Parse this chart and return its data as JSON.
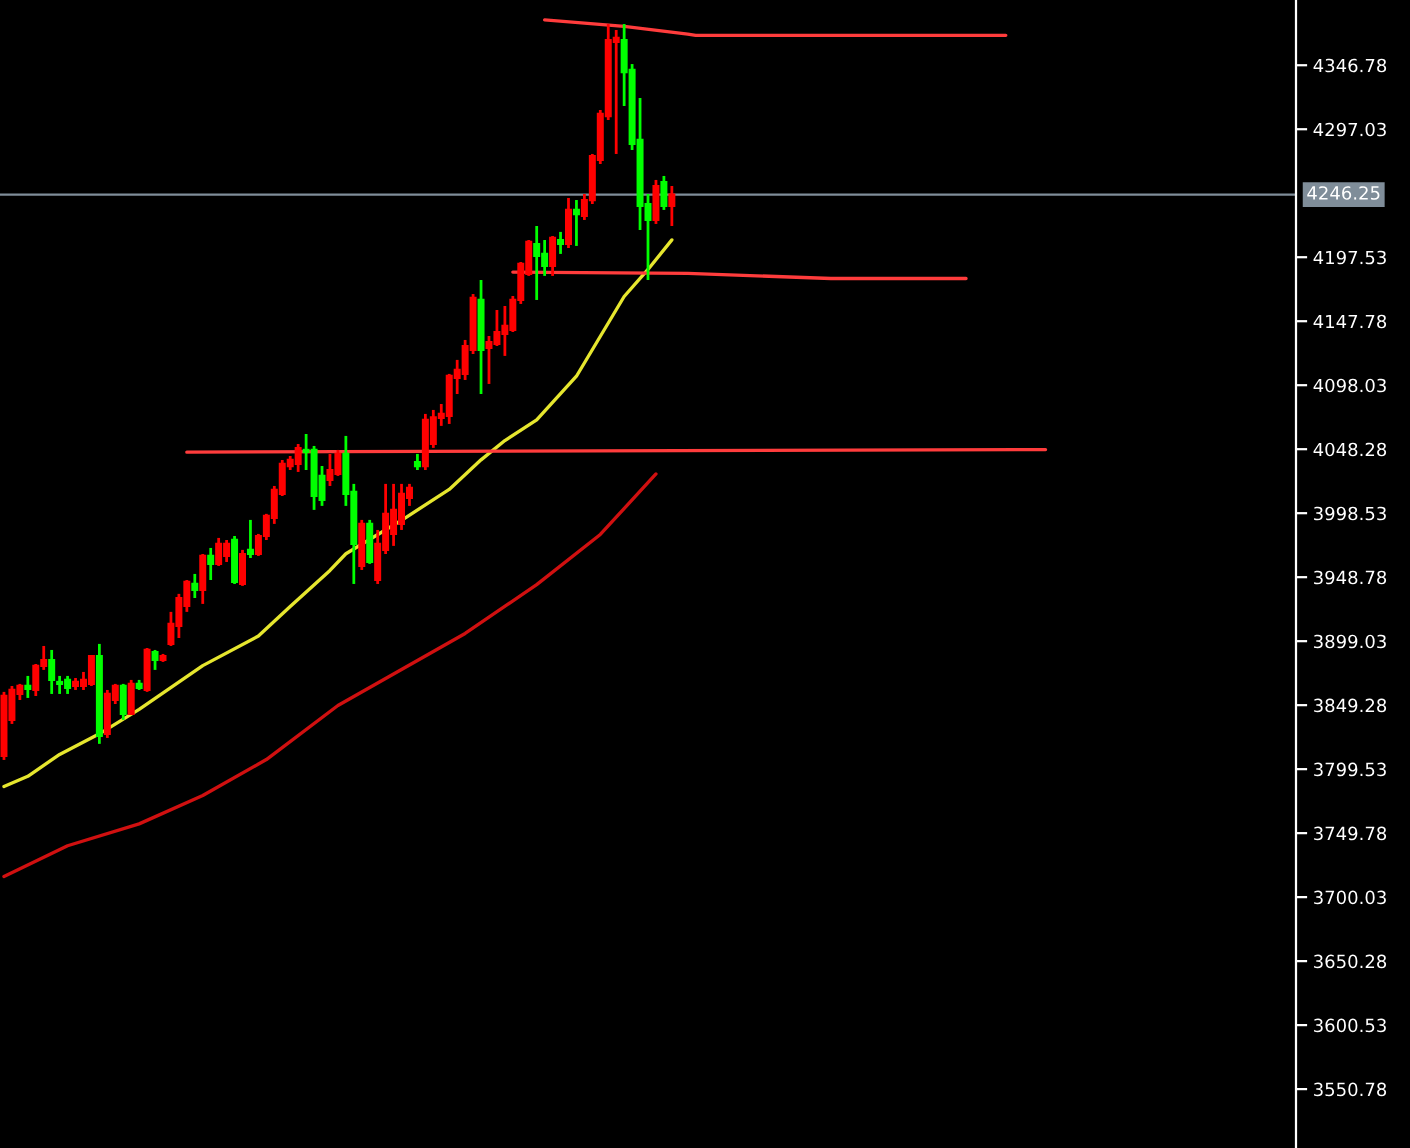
{
  "chart_data": {
    "type": "candlestick",
    "tick_labels": "y",
    "grid": false,
    "marker": "none",
    "categories": [
      null,
      null,
      null,
      null,
      null,
      null,
      null,
      null,
      null,
      null,
      null,
      null,
      null,
      null,
      null,
      null,
      null,
      null,
      null,
      null,
      null,
      null,
      null,
      null,
      null,
      null,
      null,
      null,
      null,
      null,
      null,
      null,
      null,
      null,
      null,
      null,
      null,
      null,
      null,
      null,
      null,
      null,
      null,
      null,
      null,
      null,
      null,
      null,
      null,
      null,
      null,
      null,
      null,
      null,
      null,
      null,
      null,
      null,
      null,
      null,
      null,
      null,
      null,
      null,
      null,
      null,
      null,
      null,
      null,
      null,
      null,
      null,
      null,
      null,
      null,
      null,
      null,
      null,
      null,
      null,
      null,
      null,
      null,
      null,
      null,
      null,
      null,
      null,
      null,
      null,
      null,
      null,
      null,
      null,
      null,
      null,
      null,
      null,
      null,
      null,
      null,
      null,
      null,
      null,
      null,
      null,
      null,
      null,
      null,
      null,
      null,
      null,
      null,
      null,
      null,
      null,
      null,
      null,
      null,
      null,
      null,
      null,
      null,
      null,
      null,
      null,
      null,
      null,
      null,
      null,
      null,
      null,
      null,
      null,
      null,
      null,
      null,
      null,
      null,
      null,
      null,
      null,
      null,
      null,
      null,
      null,
      null,
      null,
      null,
      null,
      null,
      null,
      null,
      null,
      null,
      null,
      null,
      null,
      null,
      null,
      null,
      null,
      null
    ],
    "ylim": [
      3505,
      4397.5
    ],
    "yticks": [
      4346.78,
      4297.03,
      4197.53,
      4147.78,
      4098.03,
      4048.28,
      3998.53,
      3948.78,
      3899.03,
      3849.28,
      3799.53,
      3749.78,
      3700.03,
      3650.28,
      3600.53,
      3550.78
    ],
    "ref_lines": [
      {
        "axis": "y",
        "value": 4246.25,
        "label": "4246.25",
        "color": "#7f8d99"
      }
    ],
    "series": [
      {
        "type": "line",
        "color": "#e6e62e",
        "values": [
          3786,
          null,
          null,
          3794,
          null,
          null,
          null,
          3811,
          null,
          null,
          null,
          null,
          3827,
          null,
          null,
          null,
          null,
          3846,
          null,
          null,
          null,
          null,
          null,
          null,
          null,
          3880,
          null,
          null,
          null,
          null,
          null,
          null,
          3903,
          null,
          null,
          null,
          3926,
          null,
          null,
          null,
          null,
          3954,
          null,
          3967,
          null,
          null,
          null,
          null,
          null,
          null,
          3993,
          null,
          null,
          null,
          null,
          null,
          4017,
          null,
          null,
          null,
          4040,
          null,
          null,
          4055,
          null,
          null,
          null,
          4071,
          null,
          null,
          null,
          null,
          4105,
          null,
          null,
          null,
          null,
          null,
          4167,
          null,
          null,
          4188,
          null,
          null,
          4211,
          null,
          null,
          null,
          null,
          null,
          null,
          null,
          null,
          null,
          null,
          null,
          null,
          null,
          null,
          null,
          null,
          null,
          null,
          null,
          null,
          null,
          null,
          null,
          null,
          null,
          null,
          null,
          null,
          null,
          null,
          null,
          null,
          null,
          null,
          null,
          null,
          null,
          null,
          null,
          null,
          null,
          null,
          null,
          null,
          null,
          null,
          null,
          null,
          null,
          null,
          null,
          null,
          null,
          null,
          null,
          null,
          null,
          null,
          null,
          null,
          null,
          null,
          null,
          null,
          null,
          null,
          null,
          null,
          null,
          null,
          null,
          null,
          null,
          null,
          null,
          null,
          null,
          null
        ]
      },
      {
        "type": "line",
        "color": "#d01010",
        "values": [
          3716,
          null,
          null,
          null,
          null,
          null,
          null,
          null,
          3740,
          null,
          null,
          null,
          null,
          null,
          null,
          null,
          null,
          3757,
          null,
          null,
          null,
          null,
          null,
          null,
          null,
          3779,
          null,
          null,
          null,
          null,
          null,
          null,
          null,
          3807,
          null,
          null,
          null,
          null,
          null,
          null,
          null,
          null,
          3849,
          null,
          null,
          null,
          null,
          null,
          null,
          null,
          3877,
          null,
          null,
          null,
          null,
          null,
          null,
          null,
          3905,
          null,
          null,
          null,
          null,
          null,
          null,
          null,
          null,
          3943,
          null,
          null,
          null,
          null,
          null,
          null,
          null,
          3982,
          null,
          null,
          null,
          null,
          null,
          null,
          4029,
          null,
          null,
          null,
          null,
          null,
          null,
          null,
          null,
          null,
          null,
          null,
          null,
          null,
          null,
          null,
          null,
          null,
          null,
          null,
          null,
          null,
          null,
          null,
          null,
          null,
          null,
          null,
          null,
          null,
          null,
          null,
          null,
          null,
          null,
          null,
          null,
          null,
          null,
          null,
          null,
          null,
          null,
          null,
          null,
          null,
          null,
          null,
          null,
          null,
          null,
          null,
          null,
          null,
          null,
          null,
          null,
          null,
          null,
          null,
          null,
          null,
          null,
          null,
          null,
          null,
          null,
          null,
          null,
          null,
          null,
          null,
          null,
          null,
          null,
          null,
          null,
          null,
          null,
          null,
          null
        ]
      },
      {
        "type": "line",
        "color": "#ff3c3c",
        "values": [
          null,
          null,
          null,
          null,
          null,
          null,
          null,
          null,
          null,
          null,
          null,
          null,
          null,
          null,
          null,
          null,
          null,
          null,
          null,
          null,
          null,
          null,
          null,
          null,
          null,
          null,
          null,
          null,
          null,
          null,
          null,
          null,
          null,
          null,
          null,
          null,
          null,
          null,
          null,
          null,
          null,
          null,
          null,
          null,
          null,
          null,
          null,
          null,
          null,
          null,
          null,
          null,
          null,
          null,
          null,
          null,
          null,
          null,
          null,
          null,
          null,
          null,
          null,
          null,
          null,
          null,
          null,
          null,
          4382,
          null,
          null,
          null,
          null,
          null,
          null,
          null,
          null,
          null,
          4377,
          null,
          null,
          null,
          null,
          null,
          null,
          null,
          4371,
          4370,
          null,
          null,
          null,
          null,
          null,
          null,
          null,
          null,
          null,
          null,
          null,
          null,
          null,
          null,
          null,
          null,
          null,
          null,
          null,
          null,
          null,
          null,
          null,
          null,
          null,
          null,
          null,
          null,
          null,
          null,
          null,
          null,
          null,
          null,
          null,
          null,
          null,
          null,
          4370,
          null,
          null,
          null,
          null,
          null,
          null,
          null,
          null,
          null,
          null,
          null,
          null,
          null,
          null,
          null,
          null,
          null,
          null,
          null,
          null,
          null,
          null,
          null,
          null,
          null,
          null,
          null,
          null,
          null,
          null,
          null,
          null,
          null,
          null,
          null,
          null
        ]
      },
      {
        "type": "line",
        "color": "#ff3c3c",
        "values": [
          null,
          null,
          null,
          null,
          null,
          null,
          null,
          null,
          null,
          null,
          null,
          null,
          null,
          null,
          null,
          null,
          null,
          null,
          null,
          null,
          null,
          null,
          null,
          null,
          null,
          null,
          null,
          null,
          null,
          null,
          null,
          null,
          null,
          null,
          null,
          null,
          null,
          null,
          null,
          null,
          null,
          null,
          null,
          null,
          null,
          null,
          null,
          null,
          null,
          null,
          null,
          null,
          null,
          null,
          null,
          null,
          null,
          null,
          null,
          null,
          null,
          null,
          null,
          null,
          4186,
          null,
          null,
          null,
          null,
          null,
          null,
          null,
          null,
          null,
          null,
          null,
          null,
          null,
          null,
          null,
          null,
          null,
          null,
          null,
          null,
          null,
          4185,
          null,
          null,
          null,
          null,
          null,
          null,
          null,
          null,
          null,
          null,
          null,
          null,
          null,
          null,
          null,
          null,
          null,
          4181,
          null,
          null,
          null,
          null,
          null,
          null,
          null,
          null,
          null,
          null,
          null,
          null,
          null,
          null,
          null,
          null,
          4181,
          null,
          null,
          null,
          null,
          null,
          null,
          null,
          null,
          null,
          null,
          null,
          null,
          null,
          null,
          null,
          null,
          null,
          null,
          null,
          null,
          null,
          null,
          null,
          null,
          null,
          null,
          null,
          null,
          null,
          null,
          null,
          null,
          null,
          null,
          null,
          null,
          null,
          null,
          null,
          null,
          null
        ]
      },
      {
        "type": "line",
        "color": "#ff3c3c",
        "values": [
          null,
          null,
          null,
          null,
          null,
          null,
          null,
          null,
          null,
          null,
          null,
          null,
          null,
          null,
          null,
          null,
          null,
          null,
          null,
          null,
          null,
          null,
          null,
          4046,
          null,
          null,
          null,
          null,
          null,
          null,
          null,
          null,
          null,
          null,
          null,
          null,
          null,
          null,
          null,
          null,
          null,
          null,
          null,
          null,
          null,
          null,
          null,
          null,
          null,
          null,
          null,
          null,
          null,
          null,
          null,
          null,
          null,
          null,
          null,
          null,
          null,
          null,
          null,
          null,
          null,
          null,
          null,
          null,
          null,
          null,
          null,
          null,
          null,
          null,
          null,
          null,
          null,
          null,
          null,
          null,
          null,
          null,
          null,
          null,
          null,
          null,
          null,
          null,
          null,
          null,
          null,
          null,
          null,
          null,
          null,
          null,
          null,
          null,
          null,
          null,
          null,
          null,
          null,
          null,
          null,
          null,
          null,
          null,
          null,
          null,
          null,
          null,
          null,
          null,
          null,
          null,
          null,
          null,
          null,
          null,
          null,
          null,
          null,
          null,
          null,
          null,
          null,
          null,
          null,
          null,
          null,
          4048,
          null,
          null,
          null,
          null,
          null,
          null,
          null,
          null,
          null,
          null,
          null,
          null,
          null,
          null,
          null,
          null,
          null,
          null,
          null,
          null,
          null,
          null,
          null,
          null,
          null,
          null,
          null,
          null,
          null,
          null,
          null
        ]
      },
      {
        "type": "candlestick",
        "ohlc": [
          [
            3809.8,
            3859.6,
            3806.7,
            3856.5
          ],
          [
            3837.8,
            3864.2,
            3834.7,
            3861.1
          ],
          [
            3858.0,
            3865.8,
            3853.3,
            3864.2
          ],
          [
            3864.2,
            3872.0,
            3854.9,
            3861.9
          ],
          [
            3861.1,
            3881.3,
            3856.4,
            3879.8
          ],
          [
            3879.8,
            3895.3,
            3876.7,
            3884.4
          ],
          [
            3884.4,
            3892.2,
            3858.0,
            3868.9
          ],
          [
            3867.3,
            3872.0,
            3858.0,
            3865.8
          ],
          [
            3868.9,
            3872.0,
            3858.0,
            3862.7
          ],
          [
            3864.2,
            3870.4,
            3861.1,
            3867.3
          ],
          [
            3864.2,
            3875.1,
            3861.1,
            3868.9
          ],
          [
            3865.8,
            3887.5,
            3864.2,
            3887.5
          ],
          [
            3887.5,
            3896.9,
            3819.2,
            3825.3
          ],
          [
            3826.9,
            3861.1,
            3823.8,
            3858.0
          ],
          [
            3853.3,
            3865.8,
            3850.2,
            3864.2
          ],
          [
            3864.2,
            3865.8,
            3837.8,
            3842.5
          ],
          [
            3842.5,
            3868.9,
            3842.5,
            3865.8
          ],
          [
            3865.8,
            3868.9,
            3861.1,
            3862.7
          ],
          [
            3861.1,
            3893.7,
            3859.6,
            3892.2
          ],
          [
            3890.6,
            3892.2,
            3876.7,
            3884.4
          ],
          [
            3884.4,
            3889.1,
            3882.9,
            3887.5
          ],
          [
            3896.9,
            3921.8,
            3895.3,
            3912.4
          ],
          [
            3910.9,
            3935.8,
            3901.5,
            3932.6
          ],
          [
            3926.4,
            3946.6,
            3921.8,
            3945.1
          ],
          [
            3943.5,
            3951.3,
            3932.6,
            3938.9
          ],
          [
            3938.9,
            3966.8,
            3928.0,
            3965.3
          ],
          [
            3965.3,
            3971.5,
            3946.6,
            3959.1
          ],
          [
            3959.1,
            3979.3,
            3957.5,
            3974.6
          ],
          [
            3965.3,
            3977.7,
            3960.6,
            3974.6
          ],
          [
            3977.7,
            3980.8,
            3943.5,
            3945.1
          ],
          [
            3943.5,
            3970.0,
            3942.0,
            3966.8
          ],
          [
            3970.0,
            3993.3,
            3963.7,
            3966.8
          ],
          [
            3966.8,
            3982.4,
            3965.3,
            3980.8
          ],
          [
            3980.8,
            3998.0,
            3977.7,
            3996.4
          ],
          [
            3994.8,
            4019.7,
            3990.2,
            4016.6
          ],
          [
            4013.5,
            4039.9,
            4011.9,
            4036.8
          ],
          [
            4035.2,
            4043.0,
            4032.1,
            4039.9
          ],
          [
            4036.8,
            4052.3,
            4030.6,
            4049.2
          ],
          [
            4047.7,
            4060.1,
            4032.1,
            4046.1
          ],
          [
            4047.7,
            4050.8,
            4001.1,
            4011.9
          ],
          [
            4027.5,
            4035.2,
            4004.2,
            4008.8
          ],
          [
            4024.4,
            4044.6,
            4019.7,
            4032.1
          ],
          [
            4029.0,
            4047.7,
            4027.5,
            4044.6
          ],
          [
            4044.6,
            4058.6,
            4004.2,
            4013.5
          ],
          [
            4015.1,
            4021.3,
            3943.5,
            3974.6
          ],
          [
            3957.5,
            3993.3,
            3954.4,
            3990.2
          ],
          [
            3990.2,
            3993.3,
            3959.1,
            3960.6
          ],
          [
            3946.6,
            3985.5,
            3943.5,
            3974.6
          ],
          [
            3970.0,
            4021.3,
            3966.8,
            3998.0
          ],
          [
            3982.4,
            4021.3,
            3973.1,
            4001.1
          ],
          [
            3990.2,
            4021.3,
            3985.5,
            4013.5
          ],
          [
            4010.4,
            4021.3,
            4004.2,
            4018.2
          ],
          [
            4038.3,
            4044.6,
            4032.1,
            4035.2
          ],
          [
            4035.2,
            4075.7,
            4032.1,
            4071.0
          ],
          [
            4052.4,
            4078.8,
            4049.3,
            4073.1
          ],
          [
            4072.6,
            4083.4,
            4066.4,
            4075.7
          ],
          [
            4074.1,
            4106.8,
            4067.9,
            4105.2
          ],
          [
            4103.7,
            4117.7,
            4091.2,
            4109.9
          ],
          [
            4106.8,
            4133.2,
            4102.1,
            4128.5
          ],
          [
            4125.4,
            4168.9,
            4122.3,
            4165.9
          ],
          [
            4164.3,
            4179.8,
            4091.2,
            4125.4
          ],
          [
            4127.0,
            4136.3,
            4099.0,
            4131.6
          ],
          [
            4130.1,
            4156.5,
            4128.5,
            4139.4
          ],
          [
            4137.9,
            4159.6,
            4120.8,
            4144.1
          ],
          [
            4141.0,
            4167.4,
            4139.4,
            4164.3
          ],
          [
            4164.3,
            4193.8,
            4161.2,
            4192.3
          ],
          [
            4184.5,
            4210.9,
            4183.0,
            4209.4
          ],
          [
            4207.8,
            4221.8,
            4164.3,
            4198.5
          ],
          [
            4200.1,
            4210.9,
            4183.0,
            4190.7
          ],
          [
            4190.7,
            4214.0,
            4183.0,
            4212.5
          ],
          [
            4210.9,
            4217.2,
            4200.1,
            4207.8
          ],
          [
            4207.8,
            4243.6,
            4204.7,
            4234.3
          ],
          [
            4234.3,
            4242.0,
            4206.3,
            4231.1
          ],
          [
            4229.6,
            4246.7,
            4226.5,
            4242.0
          ],
          [
            4242.0,
            4277.8,
            4238.9,
            4276.2
          ],
          [
            4273.1,
            4312.0,
            4270.0,
            4308.9
          ],
          [
            4307.3,
            4378.8,
            4304.2,
            4366.4
          ],
          [
            4364.9,
            4374.2,
            4277.8,
            4368.0
          ],
          [
            4366.4,
            4378.8,
            4315.1,
            4341.5
          ],
          [
            4343.1,
            4347.7,
            4280.9,
            4285.6
          ],
          [
            4288.7,
            4321.3,
            4218.7,
            4237.4
          ],
          [
            4238.9,
            4246.7,
            4179.8,
            4226.5
          ],
          [
            4226.5,
            4257.6,
            4223.4,
            4252.9
          ],
          [
            4256.0,
            4260.7,
            4234.3,
            4237.4
          ],
          [
            4237.4,
            4252.9,
            4221.8,
            4246.25
          ],
          null,
          null,
          null,
          null,
          null,
          null,
          null,
          null,
          null,
          null,
          null,
          null,
          null,
          null,
          null,
          null,
          null,
          null,
          null,
          null,
          null,
          null,
          null,
          null,
          null,
          null,
          null,
          null,
          null,
          null,
          null,
          null,
          null,
          null,
          null,
          null,
          null,
          null,
          null,
          null,
          null,
          null,
          null,
          null,
          null,
          null,
          null,
          null,
          null,
          null,
          null,
          null,
          null,
          null,
          null,
          null,
          null,
          null,
          null,
          null,
          null,
          null,
          null,
          null,
          null,
          null,
          null,
          null,
          null,
          null,
          null,
          null,
          null,
          null,
          null,
          null,
          null,
          null
        ],
        "colors": [
          "#ff0000",
          "#ff0000",
          "#ff0000",
          "#00ff00",
          "#ff0000",
          "#ff0000",
          "#00ff00",
          "#00ff00",
          "#00ff00",
          "#ff0000",
          "#ff0000",
          "#ff0000",
          "#00ff00",
          "#ff0000",
          "#ff0000",
          "#00ff00",
          "#ff0000",
          "#00ff00",
          "#ff0000",
          "#00ff00",
          "#ff0000",
          "#ff0000",
          "#ff0000",
          "#ff0000",
          "#00ff00",
          "#ff0000",
          "#00ff00",
          "#ff0000",
          "#ff0000",
          "#00ff00",
          "#ff0000",
          "#00ff00",
          "#ff0000",
          "#ff0000",
          "#ff0000",
          "#ff0000",
          "#ff0000",
          "#ff0000",
          "#00ff00",
          "#00ff00",
          "#00ff00",
          "#ff0000",
          "#ff0000",
          "#00ff00",
          "#00ff00",
          "#ff0000",
          "#00ff00",
          "#ff0000",
          "#ff0000",
          "#ff0000",
          "#ff0000",
          "#ff0000",
          "#00ff00",
          "#ff0000",
          "#ff0000",
          "#ff0000",
          "#ff0000",
          "#ff0000",
          "#ff0000",
          "#ff0000",
          "#00ff00",
          "#ff0000",
          "#ff0000",
          "#ff0000",
          "#ff0000",
          "#ff0000",
          "#ff0000",
          "#00ff00",
          "#00ff00",
          "#ff0000",
          "#00ff00",
          "#ff0000",
          "#00ff00",
          "#ff0000",
          "#ff0000",
          "#ff0000",
          "#ff0000",
          "#ff0000",
          "#00ff00",
          "#00ff00",
          "#00ff00",
          "#00ff00",
          "#ff0000",
          "#00ff00",
          "#ff0000",
          null,
          null,
          null,
          null,
          null,
          null,
          null,
          null,
          null,
          null,
          null,
          null,
          null,
          null,
          null,
          null,
          null,
          null,
          null,
          null,
          null,
          null,
          null,
          null,
          null,
          null,
          null,
          null,
          null,
          null,
          null,
          null,
          null,
          null,
          null,
          null,
          null,
          null,
          null,
          null,
          null,
          null,
          null,
          null,
          null,
          null,
          null,
          null,
          null,
          null,
          null,
          null,
          null,
          null,
          null,
          null,
          null,
          null,
          null,
          null,
          null,
          null,
          null,
          null,
          null,
          null,
          null,
          null,
          null,
          null,
          null,
          null,
          null,
          null,
          null,
          null,
          null,
          null
        ]
      }
    ]
  }
}
